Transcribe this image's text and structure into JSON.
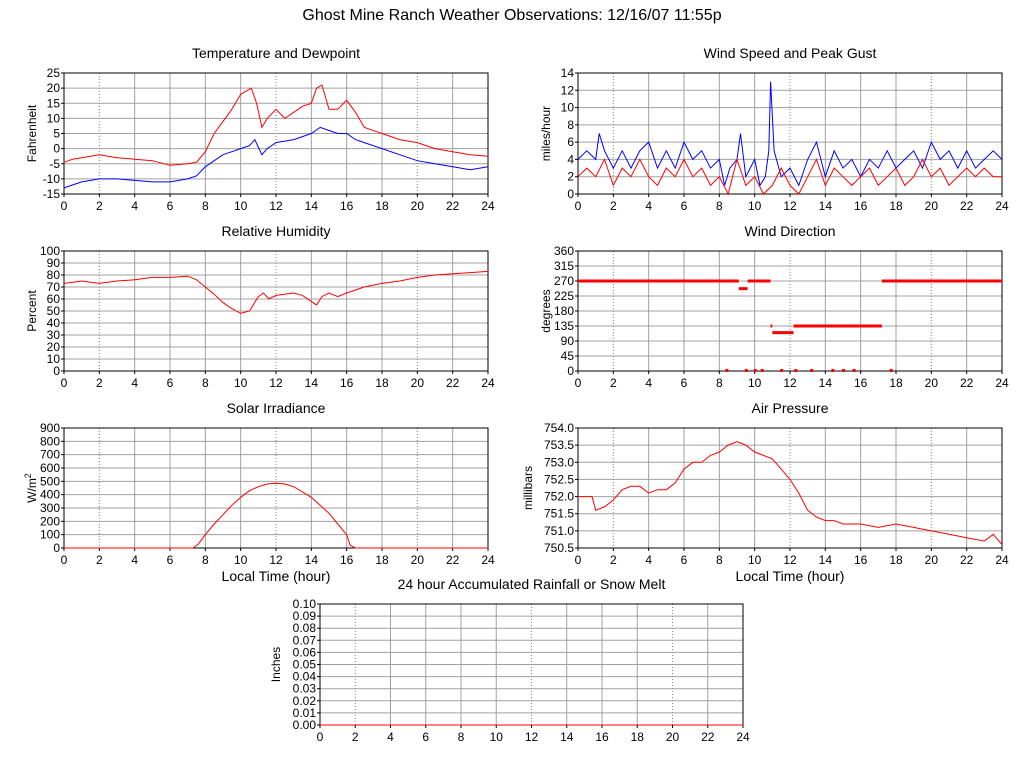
{
  "page": {
    "title": "Ghost Mine Ranch Weather Observations: 12/16/07 11:55p"
  },
  "colors": {
    "temperature": "#ff0000",
    "dewpoint": "#0000ff",
    "gust": "#0000ff",
    "speed": "#ff0000",
    "grid": "#a0a0a0"
  },
  "chart_data": [
    {
      "id": "temp",
      "type": "line",
      "title": "Temperature and Dewpoint",
      "ylabel": "Fahrenheit",
      "xlabel": "",
      "xlim": [
        0,
        24
      ],
      "ylim": [
        -15,
        25
      ],
      "yticks": [
        -15,
        -10,
        -5,
        0,
        5,
        10,
        15,
        20,
        25
      ],
      "xticks": [
        0,
        2,
        4,
        6,
        8,
        10,
        12,
        14,
        16,
        18,
        20,
        22,
        24
      ],
      "grid": true,
      "series": [
        {
          "color": "#ff0000",
          "x": [
            0,
            0.5,
            1,
            2,
            3,
            4,
            5,
            6,
            7,
            7.5,
            8,
            8.5,
            9,
            9.5,
            10,
            10.3,
            10.6,
            10.9,
            11.2,
            11.5,
            12,
            12.5,
            13,
            13.5,
            14,
            14.3,
            14.6,
            15,
            15.5,
            16,
            16.5,
            17,
            18,
            19,
            20,
            21,
            22,
            23,
            24
          ],
          "y": [
            -4.5,
            -3.5,
            -3,
            -2,
            -3,
            -3.5,
            -4,
            -5.5,
            -5,
            -4.5,
            -1,
            5,
            9,
            13,
            18,
            19,
            20,
            15,
            7,
            10,
            13,
            10,
            12,
            14,
            15,
            20,
            21,
            13,
            13,
            16,
            12,
            7,
            5,
            3,
            2,
            0,
            -1,
            -2,
            -2.5
          ]
        },
        {
          "color": "#0000ff",
          "x": [
            0,
            0.5,
            1,
            2,
            3,
            4,
            5,
            6,
            7,
            7.5,
            8,
            8.5,
            9,
            9.5,
            10,
            10.5,
            10.8,
            11.2,
            11.5,
            12,
            13,
            14,
            14.5,
            15,
            15.5,
            16,
            16.5,
            17,
            18,
            19,
            20,
            21,
            22,
            23,
            24
          ],
          "y": [
            -13,
            -12,
            -11,
            -10,
            -10,
            -10.5,
            -11,
            -11,
            -10,
            -9,
            -6,
            -4,
            -2,
            -1,
            0,
            1,
            3,
            -2,
            0,
            2,
            3,
            5,
            7,
            6,
            5,
            5,
            3,
            2,
            0,
            -2,
            -4,
            -5,
            -6,
            -7,
            -6
          ]
        }
      ]
    },
    {
      "id": "wind",
      "type": "line",
      "title": "Wind Speed and Peak Gust",
      "ylabel": "miles/hour",
      "xlabel": "",
      "xlim": [
        0,
        24
      ],
      "ylim": [
        0,
        14
      ],
      "yticks": [
        0,
        2,
        4,
        6,
        8,
        10,
        12,
        14
      ],
      "xticks": [
        0,
        2,
        4,
        6,
        8,
        10,
        12,
        14,
        16,
        18,
        20,
        22,
        24
      ],
      "grid": true,
      "series": [
        {
          "color": "#0000ff",
          "x": [
            0,
            0.5,
            1,
            1.2,
            1.5,
            2,
            2.5,
            3,
            3.5,
            4,
            4.5,
            5,
            5.5,
            6,
            6.5,
            7,
            7.5,
            8,
            8.3,
            8.6,
            9,
            9.2,
            9.5,
            10,
            10.3,
            10.6,
            10.8,
            10.9,
            11.1,
            11.5,
            12,
            12.5,
            13,
            13.5,
            14,
            14.5,
            15,
            15.5,
            16,
            16.5,
            17,
            17.5,
            18,
            18.5,
            19,
            19.5,
            20,
            20.5,
            21,
            21.5,
            22,
            22.5,
            23,
            23.5,
            24
          ],
          "y": [
            4,
            5,
            4,
            7,
            5,
            3,
            5,
            3,
            5,
            6,
            3,
            5,
            3,
            6,
            4,
            5,
            3,
            4,
            1,
            3,
            4,
            7,
            2,
            4,
            1,
            2,
            5,
            13,
            5,
            2,
            3,
            1,
            4,
            6,
            2,
            5,
            3,
            4,
            2,
            4,
            3,
            5,
            3,
            4,
            5,
            3,
            6,
            4,
            5,
            3,
            5,
            3,
            4,
            5,
            4
          ]
        },
        {
          "color": "#ff0000",
          "x": [
            0,
            0.5,
            1,
            1.5,
            2,
            2.5,
            3,
            3.5,
            4,
            4.5,
            5,
            5.5,
            6,
            6.5,
            7,
            7.5,
            8,
            8.5,
            9,
            9.5,
            10,
            10.5,
            11,
            11.5,
            12,
            12.5,
            13,
            13.5,
            14,
            14.5,
            15,
            15.5,
            16,
            16.5,
            17,
            17.5,
            18,
            18.5,
            19,
            19.5,
            20,
            20.5,
            21,
            21.5,
            22,
            22.5,
            23,
            23.5,
            24
          ],
          "y": [
            2,
            3,
            2,
            4,
            1,
            3,
            2,
            4,
            2,
            1,
            3,
            2,
            4,
            2,
            3,
            1,
            2,
            0,
            4,
            1,
            2,
            0,
            1,
            3,
            1,
            0,
            2,
            4,
            1,
            3,
            2,
            1,
            2,
            3,
            1,
            2,
            3,
            1,
            2,
            4,
            2,
            3,
            1,
            2,
            3,
            2,
            3,
            2,
            2
          ]
        }
      ]
    },
    {
      "id": "rh",
      "type": "line",
      "title": "Relative Humidity",
      "ylabel": "Percent",
      "xlabel": "",
      "xlim": [
        0,
        24
      ],
      "ylim": [
        0,
        100
      ],
      "yticks": [
        0,
        10,
        20,
        30,
        40,
        50,
        60,
        70,
        80,
        90,
        100
      ],
      "xticks": [
        0,
        2,
        4,
        6,
        8,
        10,
        12,
        14,
        16,
        18,
        20,
        22,
        24
      ],
      "grid": true,
      "series": [
        {
          "color": "#ff0000",
          "x": [
            0,
            0.5,
            1,
            2,
            3,
            4,
            5,
            6,
            7,
            7.5,
            8,
            8.5,
            9,
            9.5,
            10,
            10.5,
            11,
            11.3,
            11.6,
            12,
            13,
            13.5,
            14,
            14.3,
            14.6,
            15,
            15.5,
            16,
            17,
            18,
            19,
            20,
            21,
            22,
            23,
            24
          ],
          "y": [
            73,
            74,
            75,
            73,
            75,
            76,
            78,
            78,
            79,
            76,
            70,
            64,
            57,
            52,
            48,
            50,
            62,
            65,
            60,
            63,
            65,
            63,
            58,
            55,
            62,
            65,
            62,
            65,
            70,
            73,
            75,
            78,
            80,
            81,
            82,
            83
          ]
        }
      ]
    },
    {
      "id": "dir",
      "type": "scatter",
      "title": "Wind Direction",
      "ylabel": "degrees",
      "xlabel": "",
      "xlim": [
        0,
        24
      ],
      "ylim": [
        0,
        360
      ],
      "yticks": [
        0,
        45,
        90,
        135,
        180,
        225,
        270,
        315,
        360
      ],
      "xticks": [
        0,
        2,
        4,
        6,
        8,
        10,
        12,
        14,
        16,
        18,
        20,
        22,
        24
      ],
      "grid": true,
      "segments": [
        {
          "x0": 0,
          "x1": 9.1,
          "y": 270
        },
        {
          "x0": 9.1,
          "x1": 9.6,
          "y": 247
        },
        {
          "x0": 9.6,
          "x1": 10.4,
          "y": 270
        },
        {
          "x0": 10.4,
          "x1": 10.9,
          "y": 270
        },
        {
          "x0": 10.9,
          "x1": 11.0,
          "y": 135
        },
        {
          "x0": 11.0,
          "x1": 12.2,
          "y": 115
        },
        {
          "x0": 12.2,
          "x1": 14.5,
          "y": 135
        },
        {
          "x0": 14.5,
          "x1": 17.2,
          "y": 135
        },
        {
          "x0": 17.2,
          "x1": 24,
          "y": 270
        }
      ],
      "points": [
        {
          "x": 8.4,
          "y": 0
        },
        {
          "x": 9.5,
          "y": 0
        },
        {
          "x": 10.0,
          "y": 0
        },
        {
          "x": 10.4,
          "y": 0
        },
        {
          "x": 11.5,
          "y": 0
        },
        {
          "x": 12.3,
          "y": 0
        },
        {
          "x": 13.2,
          "y": 0
        },
        {
          "x": 14.4,
          "y": 0
        },
        {
          "x": 15.0,
          "y": 0
        },
        {
          "x": 15.6,
          "y": 0
        },
        {
          "x": 17.7,
          "y": 0
        }
      ]
    },
    {
      "id": "solar",
      "type": "line",
      "title": "Solar Irradiance",
      "ylabel": "W/m",
      "ylabel_sup": "2",
      "xlabel": "Local Time (hour)",
      "xlim": [
        0,
        24
      ],
      "ylim": [
        0,
        900
      ],
      "yticks": [
        0,
        100,
        200,
        300,
        400,
        500,
        600,
        700,
        800,
        900
      ],
      "xticks": [
        0,
        2,
        4,
        6,
        8,
        10,
        12,
        14,
        16,
        18,
        20,
        22,
        24
      ],
      "grid": true,
      "series": [
        {
          "color": "#ff0000",
          "x": [
            0,
            7.3,
            7.6,
            8,
            8.5,
            9,
            9.5,
            10,
            10.5,
            11,
            11.5,
            12,
            12.5,
            13,
            13.5,
            14,
            14.5,
            15,
            15.5,
            16,
            16.2,
            16.5,
            17,
            24
          ],
          "y": [
            0,
            0,
            30,
            100,
            180,
            250,
            320,
            380,
            430,
            460,
            480,
            485,
            480,
            460,
            420,
            380,
            320,
            260,
            180,
            100,
            20,
            0,
            0,
            0
          ]
        }
      ]
    },
    {
      "id": "press",
      "type": "line",
      "title": "Air Pressure",
      "ylabel": "millibars",
      "xlabel": "Local Time (hour)",
      "xlim": [
        0,
        24
      ],
      "ylim": [
        750.5,
        754.0
      ],
      "yticks": [
        750.5,
        751.0,
        751.5,
        752.0,
        752.5,
        753.0,
        753.5,
        754.0
      ],
      "ytick_labels": [
        "750.5",
        "751.0",
        "751.5",
        "752.0",
        "752.5",
        "753.0",
        "753.5",
        "754.0"
      ],
      "xticks": [
        0,
        2,
        4,
        6,
        8,
        10,
        12,
        14,
        16,
        18,
        20,
        22,
        24
      ],
      "grid": true,
      "series": [
        {
          "color": "#ff0000",
          "x": [
            0,
            0.8,
            1.0,
            1.5,
            2,
            2.5,
            3,
            3.5,
            4,
            4.5,
            5,
            5.5,
            6,
            6.5,
            7,
            7.5,
            8,
            8.5,
            9,
            9.5,
            10,
            10.5,
            11,
            11.5,
            12,
            12.5,
            13,
            13.5,
            14,
            14.5,
            15,
            16,
            17,
            18,
            19,
            20,
            21,
            22,
            23,
            23.5,
            24
          ],
          "y": [
            752.0,
            752.0,
            751.6,
            751.7,
            751.9,
            752.2,
            752.3,
            752.3,
            752.1,
            752.2,
            752.2,
            752.4,
            752.8,
            753.0,
            753.0,
            753.2,
            753.3,
            753.5,
            753.6,
            753.5,
            753.3,
            753.2,
            753.1,
            752.8,
            752.5,
            752.1,
            751.6,
            751.4,
            751.3,
            751.3,
            751.2,
            751.2,
            751.1,
            751.2,
            751.1,
            751.0,
            750.9,
            750.8,
            750.7,
            750.9,
            750.6
          ]
        }
      ]
    },
    {
      "id": "rain",
      "type": "line",
      "title": "24 hour Accumulated Rainfall or Snow Melt",
      "ylabel": "Inches",
      "xlabel": "",
      "xlim": [
        0,
        24
      ],
      "ylim": [
        0,
        0.1
      ],
      "yticks": [
        0,
        0.01,
        0.02,
        0.03,
        0.04,
        0.05,
        0.06,
        0.07,
        0.08,
        0.09,
        0.1
      ],
      "ytick_labels": [
        "0.00",
        "0.01",
        "0.02",
        "0.03",
        "0.04",
        "0.05",
        "0.06",
        "0.07",
        "0.08",
        "0.09",
        "0.10"
      ],
      "xticks": [
        0,
        2,
        4,
        6,
        8,
        10,
        12,
        14,
        16,
        18,
        20,
        22,
        24
      ],
      "grid": true,
      "series": [
        {
          "color": "#ff0000",
          "x": [
            0,
            24
          ],
          "y": [
            0,
            0
          ]
        }
      ]
    }
  ]
}
